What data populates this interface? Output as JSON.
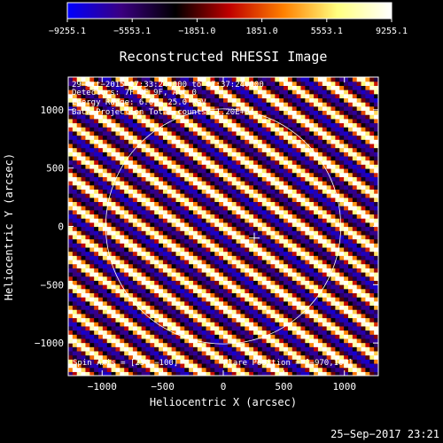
{
  "chart_data": {
    "type": "heatmap",
    "title": "Reconstructed RHESSI Image",
    "xlabel": "Heliocentric X (arcsec)",
    "ylabel": "Heliocentric Y (arcsec)",
    "xlim": [
      -1280,
      1280
    ],
    "ylim": [
      -1280,
      1280
    ],
    "xticks": [
      -1000,
      -500,
      0,
      500,
      1000
    ],
    "xtick_labels": [
      "−1000",
      "−500",
      "0",
      "500",
      "1000"
    ],
    "yticks": [
      1000,
      500,
      0,
      -500,
      -1000
    ],
    "ytick_labels": [
      "1000",
      "500",
      "0",
      "−500",
      "−1000"
    ],
    "colorbar": {
      "range": [
        -9255.1,
        9255.1
      ],
      "ticks": [
        -9255.1,
        -5553.1,
        -1851.0,
        1851.0,
        5553.1,
        9255.1
      ],
      "tick_labels": [
        "−9255.1",
        "−5553.1",
        "−1851.0",
        "1851.0",
        "5553.1",
        "9255.1"
      ],
      "colormap": [
        "#0000ff",
        "#3a0080",
        "#000000",
        "#c00000",
        "#ff8000",
        "#ffff80",
        "#ffffff"
      ]
    },
    "annotations": [
      "29−Oct−2015 07:33:24.000 to 07:37:24.000",
      "Detectors: 7F 8F 9F, Att 0",
      "Energy Range: 6.0 − 25.0 keV",
      "Back Projection   Total counts: 1.20E+04"
    ],
    "spin_axis_label": "Spin Axis = [256,−100]",
    "flare_position_label": "Flare Position = [−970,107]",
    "solar_limb": {
      "center": [
        0,
        0
      ],
      "radius": 970
    },
    "spin_axis": [
      256,
      -100
    ],
    "stripe": {
      "angle_deg": -35,
      "period": 188,
      "amplitude": 9255.1
    },
    "timestamp": "25−Sep−2017 23:21"
  }
}
